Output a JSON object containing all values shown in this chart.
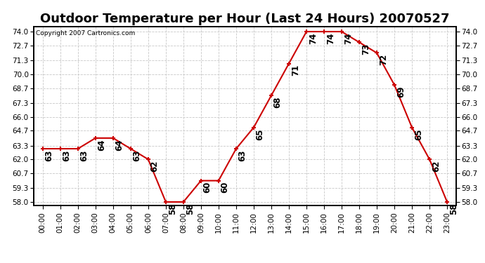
{
  "title": "Outdoor Temperature per Hour (Last 24 Hours) 20070527",
  "copyright": "Copyright 2007 Cartronics.com",
  "hours": [
    "00:00",
    "01:00",
    "02:00",
    "03:00",
    "04:00",
    "05:00",
    "06:00",
    "07:00",
    "08:00",
    "09:00",
    "10:00",
    "11:00",
    "12:00",
    "13:00",
    "14:00",
    "15:00",
    "16:00",
    "17:00",
    "18:00",
    "19:00",
    "20:00",
    "21:00",
    "22:00",
    "23:00"
  ],
  "temps": [
    63,
    63,
    63,
    64,
    64,
    63,
    62,
    58,
    58,
    60,
    60,
    63,
    65,
    68,
    71,
    74,
    74,
    74,
    73,
    72,
    69,
    65,
    62,
    58
  ],
  "ylim_min": 57.7,
  "ylim_max": 74.5,
  "yticks": [
    58.0,
    59.3,
    60.7,
    62.0,
    63.3,
    64.7,
    66.0,
    67.3,
    68.7,
    70.0,
    71.3,
    72.7,
    74.0
  ],
  "line_color": "#cc0000",
  "marker_color": "#cc0000",
  "grid_color": "#c8c8c8",
  "bg_color": "#ffffff",
  "label_color": "#000000",
  "copyright_color": "#000000",
  "title_fontsize": 13,
  "tick_fontsize": 7.5,
  "label_fontsize": 8.5
}
